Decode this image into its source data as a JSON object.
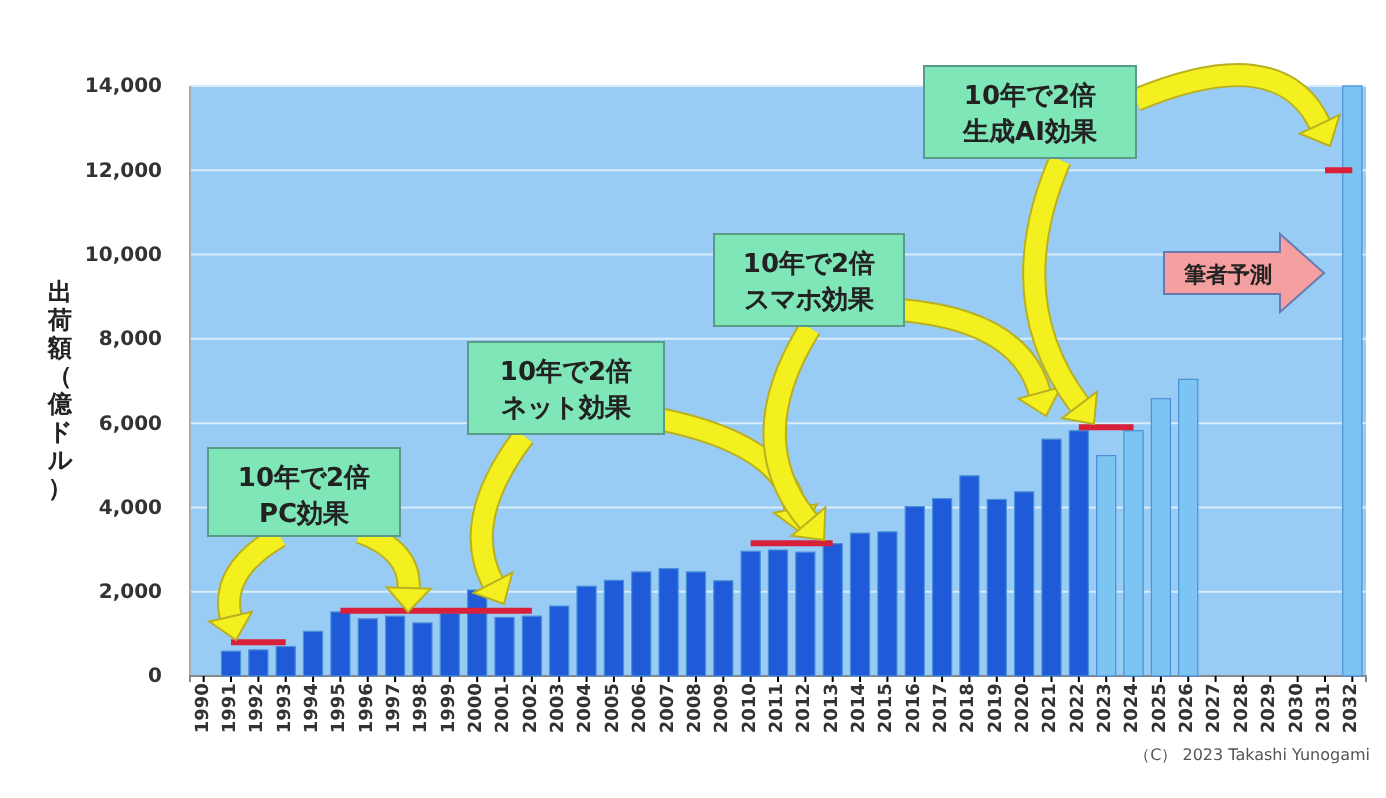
{
  "chart_data": {
    "type": "bar",
    "ylabel": "出荷額（億ドル）",
    "categories": [
      "1990",
      "1991",
      "1992",
      "1993",
      "1994",
      "1995",
      "1996",
      "1997",
      "1998",
      "1999",
      "2000",
      "2001",
      "2002",
      "2003",
      "2004",
      "2005",
      "2006",
      "2007",
      "2008",
      "2009",
      "2010",
      "2011",
      "2012",
      "2013",
      "2014",
      "2015",
      "2016",
      "2017",
      "2018",
      "2019",
      "2020",
      "2021",
      "2022",
      "2023",
      "2024",
      "2025",
      "2026",
      "2027",
      "2028",
      "2029",
      "2030",
      "2031",
      "2032"
    ],
    "series": [
      {
        "values": [
          null,
          590,
          620,
          700,
          1060,
          1520,
          1360,
          1420,
          1260,
          1490,
          2040,
          1390,
          1420,
          1660,
          2130,
          2270,
          2470,
          2550,
          2470,
          2260,
          2960,
          2990,
          2940,
          3140,
          3390,
          3420,
          4020,
          4210,
          4750,
          4190,
          4370,
          5620,
          5820,
          5230,
          5820,
          6580,
          7040,
          null,
          null,
          null,
          null,
          null,
          14000
        ],
        "colors": [
          null,
          "#1f5ad8",
          "#1f5ad8",
          "#1f5ad8",
          "#1f5ad8",
          "#1f5ad8",
          "#1f5ad8",
          "#1f5ad8",
          "#1f5ad8",
          "#1f5ad8",
          "#1f5ad8",
          "#1f5ad8",
          "#1f5ad8",
          "#1f5ad8",
          "#1f5ad8",
          "#1f5ad8",
          "#1f5ad8",
          "#1f5ad8",
          "#1f5ad8",
          "#1f5ad8",
          "#1f5ad8",
          "#1f5ad8",
          "#1f5ad8",
          "#1f5ad8",
          "#1f5ad8",
          "#1f5ad8",
          "#1f5ad8",
          "#1f5ad8",
          "#1f5ad8",
          "#1f5ad8",
          "#1f5ad8",
          "#1f5ad8",
          "#1f5ad8",
          "#7cc4f2",
          "#7cc4f2",
          "#7cc4f2",
          "#7cc4f2",
          null,
          null,
          null,
          null,
          null,
          "#7cc4f2"
        ]
      },
      {
        "type": "line",
        "color": "#d8203a",
        "values": [
          null,
          800,
          800,
          800,
          null,
          1550,
          1550,
          1550,
          1550,
          1550,
          1550,
          1550,
          1550,
          null,
          null,
          null,
          null,
          null,
          null,
          null,
          3150,
          3150,
          3150,
          3150,
          null,
          null,
          null,
          null,
          null,
          null,
          null,
          null,
          5900,
          5900,
          5900,
          null,
          null,
          null,
          null,
          null,
          null,
          12000,
          12000
        ]
      }
    ],
    "ylim": [
      0,
      14000
    ],
    "yticks": [
      0,
      {
        "value": 2000,
        "label": "2,000"
      },
      {
        "value": 4000,
        "label": "4,000"
      },
      {
        "value": 6000,
        "label": "6,000"
      },
      {
        "value": 8000,
        "label": "8,000"
      },
      {
        "value": 10000,
        "label": "10,000"
      },
      {
        "value": 12000,
        "label": "12,000"
      },
      {
        "value": 14000,
        "label": "14,000"
      }
    ],
    "grid": "y",
    "annotations": [
      "10年で2倍PC効果",
      "10年で2倍ネット効果",
      "10年で2倍スマホ効果",
      "10年で2倍生成AI効果",
      "筆者予測",
      "（C） 2023 Takashi Yunogami"
    ]
  }
}
